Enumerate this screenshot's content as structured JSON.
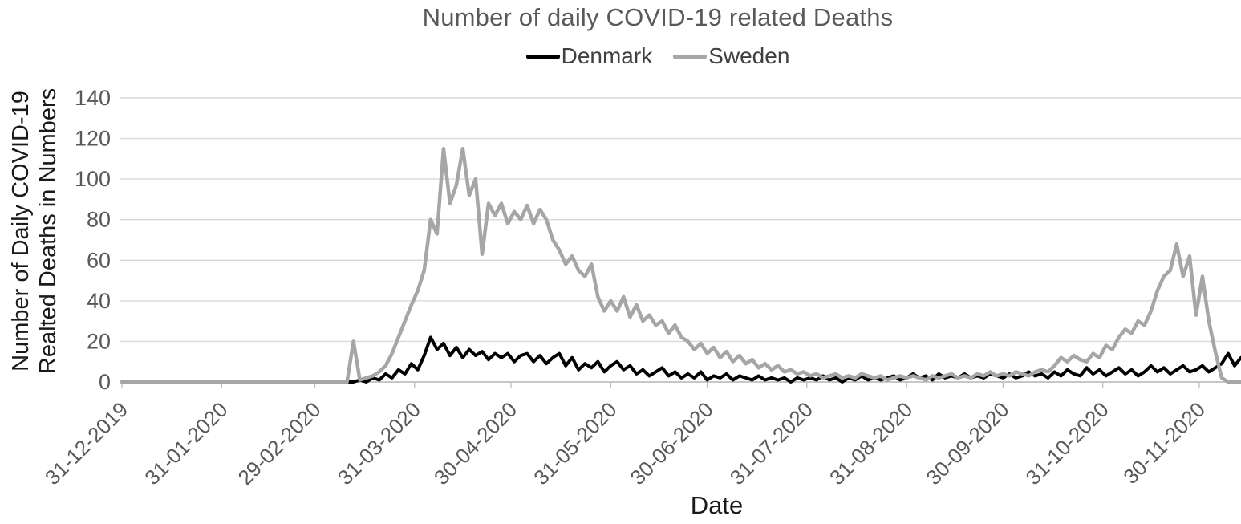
{
  "colors": {
    "background": "#ffffff",
    "title_text": "#595959",
    "axis_tick_text": "#595959",
    "axis_title_text": "#1a1a1a",
    "legend_text": "#404040",
    "gridline": "#d9d9d9",
    "axis_line": "#bfbfbf",
    "denmark_line": "#000000",
    "sweden_line": "#a6a6a6"
  },
  "chart_data": {
    "type": "line",
    "title": "Number of daily COVID-19 related Deaths",
    "xlabel": "Date",
    "ylabel_lines": [
      "Number of Daily COVID-19",
      "Realted Deaths in Numbers"
    ],
    "ylim": [
      0,
      140
    ],
    "yticks": [
      0,
      20,
      40,
      60,
      80,
      100,
      120,
      140
    ],
    "grid": "horizontal-only",
    "legend_position": "top-center",
    "x_axis": {
      "tick_labels": [
        "31-12-2019",
        "31-01-2020",
        "29-02-2020",
        "31-03-2020",
        "30-04-2020",
        "31-05-2020",
        "30-06-2020",
        "31-07-2020",
        "31-08-2020",
        "30-09-2020",
        "31-10-2020",
        "30-11-2020"
      ],
      "tick_days_from_start": [
        0,
        31,
        60,
        91,
        121,
        152,
        182,
        213,
        244,
        274,
        305,
        335
      ],
      "total_days": 348,
      "label_rotation_deg": 45
    },
    "sampling": {
      "start_date": "31-12-2019",
      "step_days": 2
    },
    "series": [
      {
        "name": "Denmark",
        "color": "#000000",
        "line_width": 4,
        "values": [
          0,
          0,
          0,
          0,
          0,
          0,
          0,
          0,
          0,
          0,
          0,
          0,
          0,
          0,
          0,
          0,
          0,
          0,
          0,
          0,
          0,
          0,
          0,
          0,
          0,
          0,
          0,
          0,
          0,
          0,
          0,
          0,
          0,
          0,
          0,
          0,
          0,
          1,
          0,
          2,
          1,
          4,
          2,
          6,
          4,
          9,
          6,
          13,
          22,
          16,
          19,
          13,
          17,
          12,
          16,
          13,
          15,
          11,
          14,
          12,
          14,
          10,
          13,
          14,
          10,
          13,
          9,
          12,
          14,
          8,
          12,
          6,
          9,
          7,
          10,
          5,
          8,
          10,
          6,
          8,
          4,
          6,
          3,
          5,
          7,
          3,
          5,
          2,
          4,
          2,
          5,
          1,
          3,
          2,
          4,
          1,
          3,
          2,
          1,
          3,
          1,
          2,
          1,
          2,
          0,
          2,
          1,
          2,
          1,
          3,
          1,
          2,
          0,
          2,
          1,
          3,
          1,
          2,
          1,
          2,
          3,
          1,
          2,
          4,
          2,
          3,
          1,
          4,
          2,
          3,
          2,
          4,
          2,
          3,
          2,
          4,
          3,
          2,
          4,
          2,
          3,
          5,
          3,
          4,
          2,
          5,
          3,
          6,
          4,
          3,
          7,
          4,
          6,
          3,
          5,
          7,
          4,
          6,
          3,
          5,
          8,
          5,
          7,
          4,
          6,
          8,
          5,
          6,
          8,
          5,
          7,
          9,
          14,
          8,
          12
        ]
      },
      {
        "name": "Sweden",
        "color": "#a6a6a6",
        "line_width": 4.5,
        "values": [
          0,
          0,
          0,
          0,
          0,
          0,
          0,
          0,
          0,
          0,
          0,
          0,
          0,
          0,
          0,
          0,
          0,
          0,
          0,
          0,
          0,
          0,
          0,
          0,
          0,
          0,
          0,
          0,
          0,
          0,
          0,
          0,
          0,
          0,
          0,
          0,
          20,
          1,
          2,
          3,
          5,
          8,
          14,
          22,
          30,
          38,
          45,
          55,
          80,
          73,
          115,
          88,
          97,
          115,
          92,
          100,
          63,
          88,
          82,
          88,
          78,
          84,
          80,
          87,
          78,
          85,
          80,
          70,
          65,
          58,
          62,
          55,
          52,
          58,
          42,
          35,
          40,
          35,
          42,
          32,
          38,
          30,
          33,
          28,
          30,
          24,
          28,
          22,
          20,
          16,
          19,
          14,
          17,
          12,
          15,
          10,
          13,
          9,
          11,
          7,
          9,
          6,
          8,
          5,
          6,
          4,
          5,
          3,
          4,
          2,
          3,
          4,
          2,
          3,
          2,
          4,
          3,
          2,
          3,
          1,
          2,
          3,
          2,
          3,
          2,
          1,
          3,
          2,
          3,
          4,
          2,
          3,
          2,
          4,
          3,
          5,
          3,
          4,
          3,
          5,
          4,
          3,
          5,
          6,
          5,
          8,
          12,
          10,
          13,
          11,
          10,
          14,
          12,
          18,
          16,
          22,
          26,
          24,
          30,
          28,
          35,
          45,
          52,
          55,
          68,
          52,
          62,
          33,
          52,
          30,
          15,
          2,
          0,
          0,
          0
        ]
      }
    ]
  }
}
